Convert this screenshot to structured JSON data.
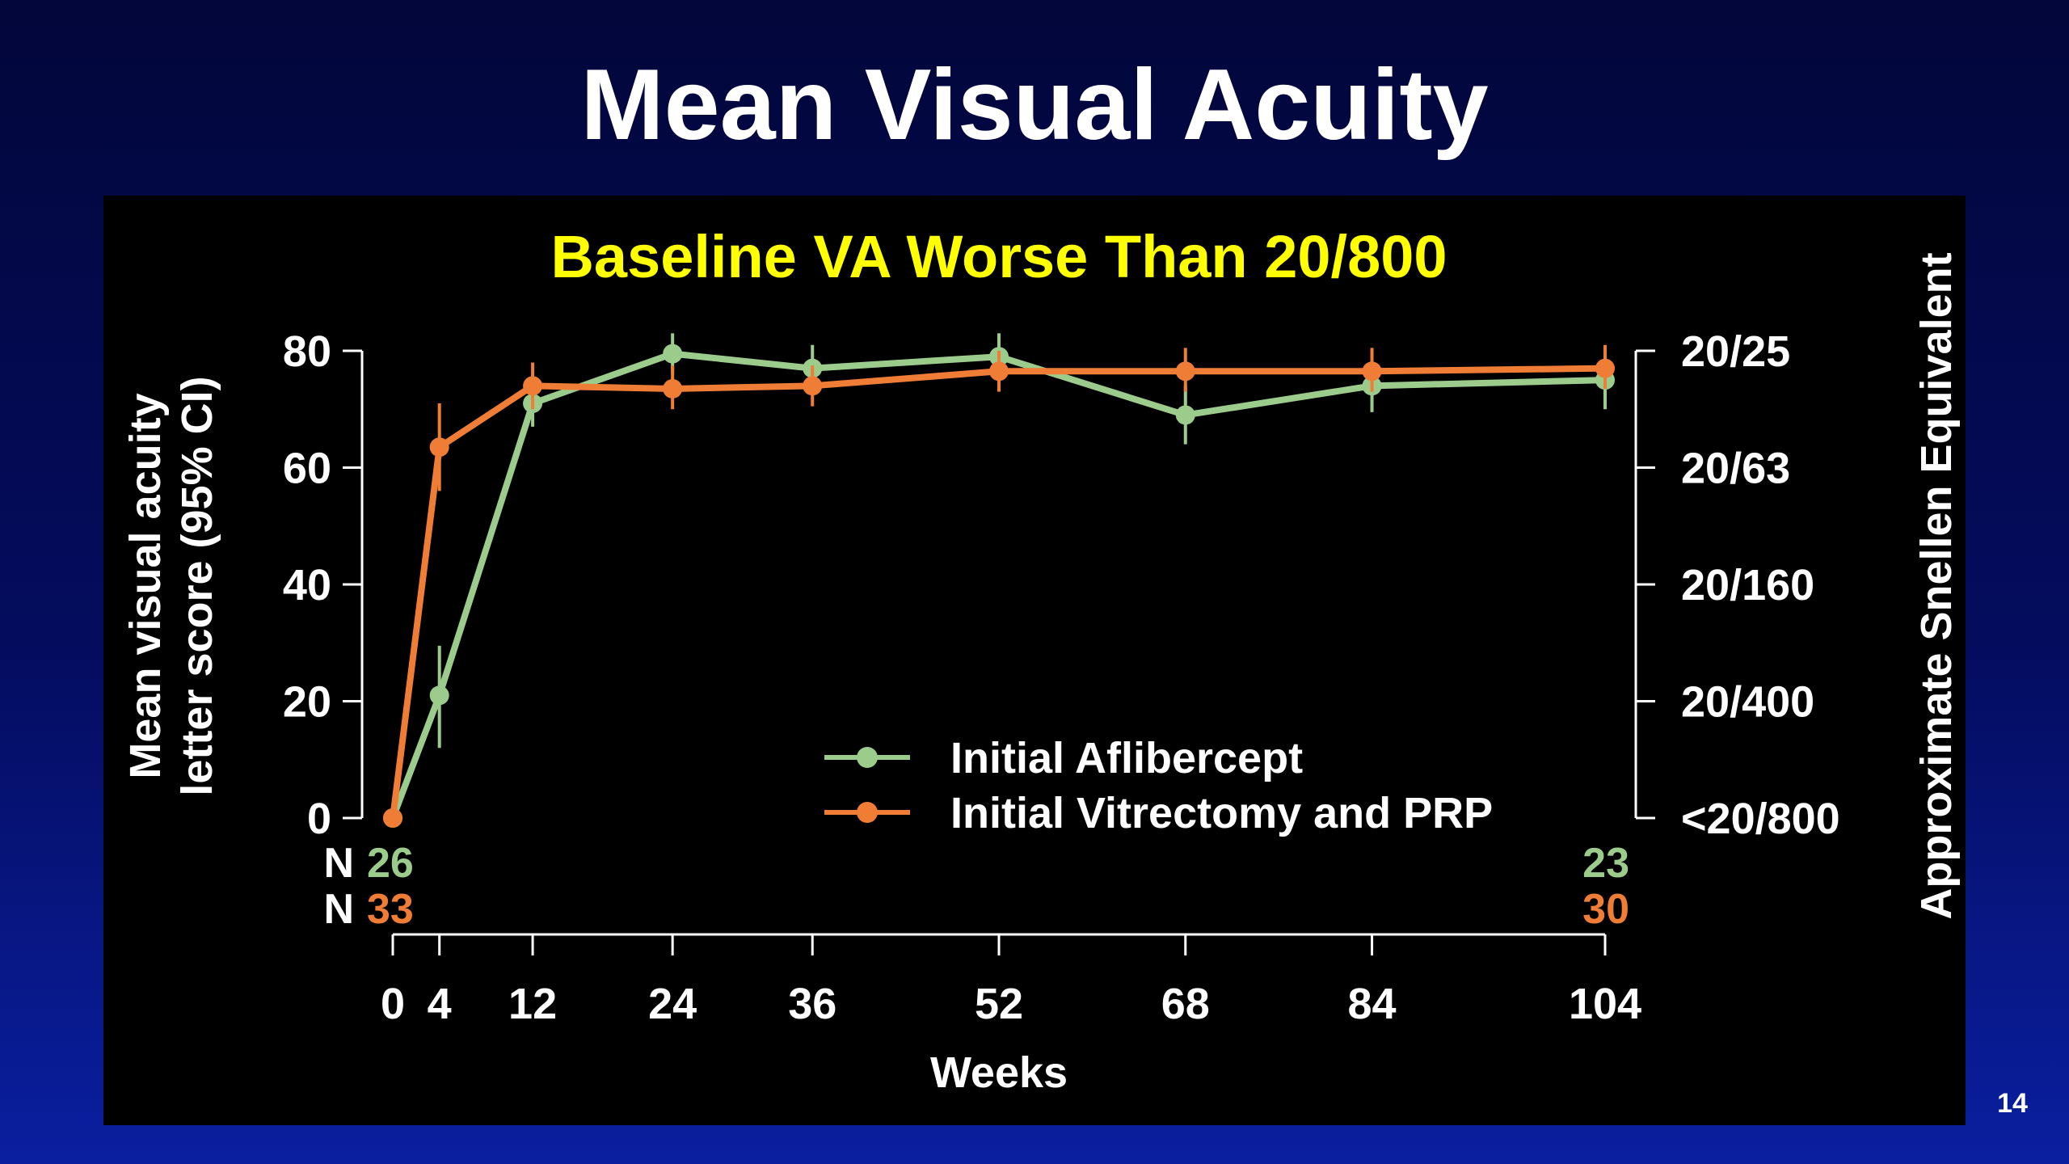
{
  "slide": {
    "title": "Mean Visual Acuity",
    "page_number": "14"
  },
  "colors": {
    "aflibercept": "#9ccc8c",
    "vitrectomy": "#f07d35",
    "subtitle": "#ffff00",
    "text": "#ffffff"
  },
  "chart_data": {
    "type": "line",
    "title": "Baseline VA Worse Than 20/800",
    "xlabel": "Weeks",
    "ylabel_line1": "Mean visual acuity",
    "ylabel_line2": "letter score (95% CI)",
    "y2label": "Approximate Snellen Equivalent",
    "x_ticks": [
      0,
      4,
      12,
      24,
      36,
      52,
      68,
      84,
      104
    ],
    "y_ticks": [
      0,
      20,
      40,
      60,
      80
    ],
    "y2_ticks": [
      {
        "y": 80,
        "label": "20/25"
      },
      {
        "y": 60,
        "label": "20/63"
      },
      {
        "y": 40,
        "label": "20/160"
      },
      {
        "y": 20,
        "label": "20/400"
      },
      {
        "y": 0,
        "label": "<20/800"
      }
    ],
    "xlim": [
      0,
      104
    ],
    "ylim": [
      0,
      80
    ],
    "legend_position": "lower-center",
    "series": [
      {
        "name": "Initial Aflibercept",
        "color": "#9ccc8c",
        "x": [
          0,
          4,
          12,
          24,
          36,
          52,
          68,
          84,
          104
        ],
        "y": [
          0,
          21,
          71,
          79.5,
          77,
          79,
          69,
          74,
          75
        ],
        "ci_low": [
          0,
          12,
          67,
          76,
          73,
          75,
          64,
          69.5,
          70
        ],
        "ci_high": [
          0,
          29.5,
          75.5,
          83,
          81,
          83,
          74,
          78,
          79.5
        ]
      },
      {
        "name": "Initial Vitrectomy and PRP",
        "color": "#f07d35",
        "x": [
          0,
          4,
          12,
          24,
          36,
          52,
          68,
          84,
          104
        ],
        "y": [
          0,
          63.5,
          74,
          73.5,
          74,
          76.5,
          76.5,
          76.5,
          77
        ],
        "ci_low": [
          0,
          56,
          70,
          70,
          70.5,
          73,
          73,
          73,
          73.5
        ],
        "ci_high": [
          0,
          71,
          78,
          77.5,
          77.5,
          80,
          80.5,
          80.5,
          81
        ]
      }
    ],
    "n_rows": [
      {
        "label": "N",
        "first": "26",
        "last": "23",
        "color": "#9ccc8c"
      },
      {
        "label": "N",
        "first": "33",
        "last": "30",
        "color": "#f07d35"
      }
    ]
  }
}
